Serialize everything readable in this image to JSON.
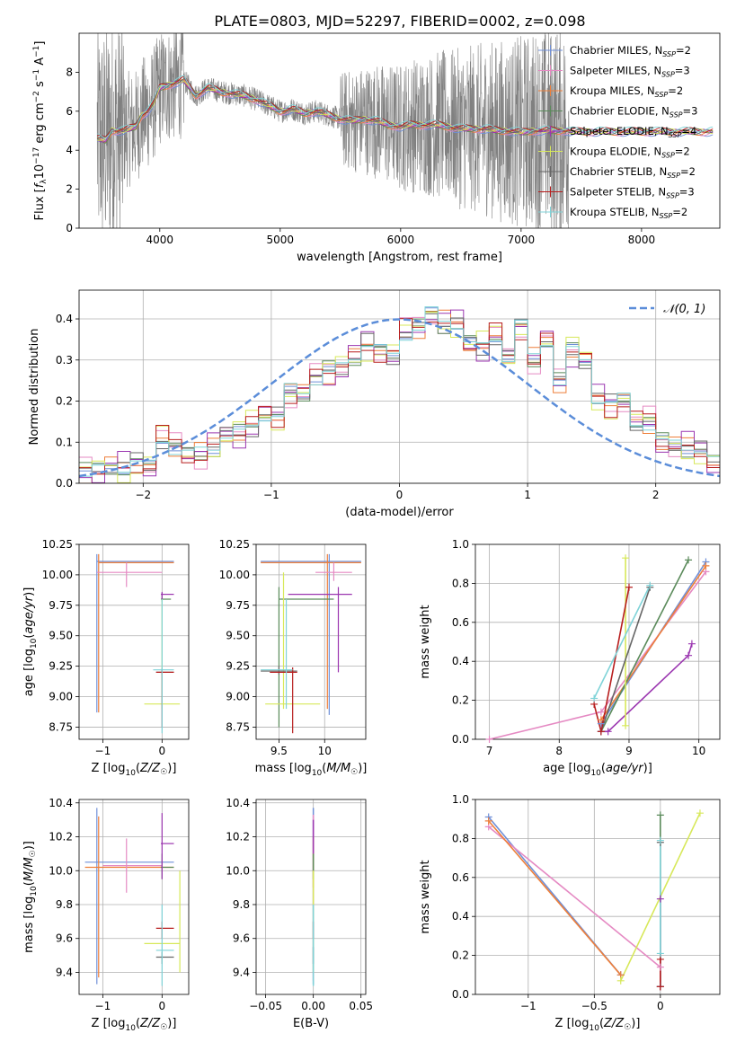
{
  "title": "PLATE=0803, MJD=52297, FIBERID=0002, z=0.098",
  "colors": {
    "Chabrier MILES": "#6f8fd8",
    "Salpeter MILES": "#e58ac3",
    "Kroupa MILES": "#ee7f3a",
    "Chabrier ELODIE": "#5a8a5a",
    "Salpeter ELODIE": "#9b36b0",
    "Kroupa ELODIE": "#d7e85a",
    "Chabrier STELIB": "#666666",
    "Salpeter STELIB": "#b81e1e",
    "Kroupa STELIB": "#7fd3d8",
    "data": "#808080",
    "gaussian": "#5b8dd9"
  },
  "chart_data": [
    {
      "id": "spectrum",
      "type": "line",
      "xlabel": "wavelength [Angstrom, rest frame]",
      "ylabel": "Flux [f_λ 10^-17 erg cm^-2 s^-1 A^-1]",
      "xlim": [
        3330,
        8650
      ],
      "ylim": [
        0,
        10
      ],
      "xticks": [
        4000,
        5000,
        6000,
        7000,
        8000
      ],
      "yticks": [
        0,
        2,
        4,
        6,
        8
      ],
      "legend_position": "top-right",
      "legend": [
        {
          "name": "Chabrier MILES",
          "nssp": "2"
        },
        {
          "name": "Salpeter MILES",
          "nssp": "3"
        },
        {
          "name": "Kroupa MILES",
          "nssp": "2"
        },
        {
          "name": "Chabrier ELODIE",
          "nssp": "3"
        },
        {
          "name": "Salpeter ELODIE",
          "nssp": "4"
        },
        {
          "name": "Kroupa ELODIE",
          "nssp": "2"
        },
        {
          "name": "Chabrier STELIB",
          "nssp": "2"
        },
        {
          "name": "Salpeter STELIB",
          "nssp": "3"
        },
        {
          "name": "Kroupa STELIB",
          "nssp": "2"
        }
      ],
      "data_range": [
        3480,
        7400
      ],
      "model_points": [
        [
          3480,
          4.6
        ],
        [
          3550,
          4.5
        ],
        [
          3600,
          5.0
        ],
        [
          3700,
          5.0
        ],
        [
          3800,
          5.2
        ],
        [
          3850,
          5.8
        ],
        [
          3900,
          6.0
        ],
        [
          3950,
          6.4
        ],
        [
          4000,
          7.2
        ],
        [
          4100,
          7.4
        ],
        [
          4200,
          7.6
        ],
        [
          4300,
          6.8
        ],
        [
          4400,
          7.2
        ],
        [
          4500,
          7.0
        ],
        [
          4600,
          6.9
        ],
        [
          4700,
          6.8
        ],
        [
          4800,
          6.6
        ],
        [
          4900,
          6.3
        ],
        [
          5000,
          6.0
        ],
        [
          5100,
          6.1
        ],
        [
          5200,
          5.9
        ],
        [
          5300,
          6.0
        ],
        [
          5400,
          5.8
        ],
        [
          5500,
          5.6
        ],
        [
          5600,
          5.5
        ],
        [
          5700,
          5.6
        ],
        [
          5800,
          5.5
        ],
        [
          5900,
          5.3
        ],
        [
          6000,
          5.2
        ],
        [
          6100,
          5.3
        ],
        [
          6200,
          5.3
        ],
        [
          6300,
          5.3
        ],
        [
          6400,
          5.2
        ],
        [
          6500,
          5.1
        ],
        [
          6600,
          5.1
        ],
        [
          6700,
          5.1
        ],
        [
          6800,
          5.0
        ],
        [
          6900,
          5.0
        ],
        [
          7000,
          4.9
        ],
        [
          7100,
          5.0
        ],
        [
          7200,
          5.0
        ],
        [
          7300,
          5.0
        ],
        [
          7400,
          5.0
        ]
      ]
    },
    {
      "id": "residuals",
      "type": "line",
      "xlabel": "(data-model)/error",
      "ylabel": "Normed distribution",
      "xlim": [
        -2.5,
        2.5
      ],
      "ylim": [
        0,
        0.47
      ],
      "xticks": [
        -2,
        -1,
        0,
        1,
        2
      ],
      "yticks": [
        0.0,
        0.1,
        0.2,
        0.3,
        0.4
      ],
      "legend": "𝒩(0, 1)",
      "legend_position": "top-right",
      "bin_width": 0.1,
      "bin_start": -2.5,
      "histogram": [
        0.03,
        0.03,
        0.04,
        0.04,
        0.05,
        0.04,
        0.11,
        0.09,
        0.07,
        0.07,
        0.09,
        0.12,
        0.12,
        0.14,
        0.17,
        0.16,
        0.22,
        0.22,
        0.26,
        0.27,
        0.28,
        0.31,
        0.34,
        0.32,
        0.31,
        0.37,
        0.38,
        0.41,
        0.39,
        0.39,
        0.34,
        0.33,
        0.36,
        0.31,
        0.38,
        0.3,
        0.35,
        0.25,
        0.32,
        0.3,
        0.21,
        0.19,
        0.2,
        0.15,
        0.15,
        0.1,
        0.09,
        0.09,
        0.08,
        0.05
      ]
    },
    {
      "id": "age-vs-Z",
      "type": "scatter",
      "xlabel": "Z [log10(Z/Z☉)]",
      "ylabel": "age [log10(age/yr)]",
      "xlim": [
        -1.4,
        0.45
      ],
      "ylim": [
        8.65,
        10.25
      ],
      "xticks": [
        -1,
        0
      ],
      "yticks": [
        8.75,
        9.0,
        9.25,
        9.5,
        9.75,
        10.0,
        10.25
      ]
    },
    {
      "id": "age-vs-mass",
      "type": "scatter",
      "xlabel": "mass [log10(M/M☉)]",
      "xlim": [
        9.25,
        10.45
      ],
      "ylim": [
        8.65,
        10.25
      ],
      "xticks": [
        9.5,
        10.0
      ],
      "yticks": [
        8.75,
        9.0,
        9.25,
        9.5,
        9.75,
        10.0,
        10.25
      ]
    },
    {
      "id": "weight-vs-age",
      "type": "line",
      "xlabel": "age [log10(age/yr)]",
      "ylabel": "mass weight",
      "xlim": [
        6.8,
        10.3
      ],
      "ylim": [
        0,
        1.0
      ],
      "xticks": [
        7,
        8,
        9,
        10
      ],
      "yticks": [
        0.0,
        0.2,
        0.4,
        0.6,
        0.8,
        1.0
      ],
      "series": [
        {
          "name": "Chabrier MILES",
          "x": [
            8.6,
            10.1
          ],
          "y": [
            0.08,
            0.91
          ]
        },
        {
          "name": "Salpeter MILES",
          "x": [
            7.0,
            8.6,
            10.1
          ],
          "y": [
            0.0,
            0.14,
            0.86
          ]
        },
        {
          "name": "Kroupa MILES",
          "x": [
            8.6,
            10.1
          ],
          "y": [
            0.1,
            0.89
          ]
        },
        {
          "name": "Chabrier ELODIE",
          "x": [
            8.6,
            9.85
          ],
          "y": [
            0.04,
            0.92
          ]
        },
        {
          "name": "Salpeter ELODIE",
          "x": [
            8.6,
            8.7,
            9.85,
            9.9
          ],
          "y": [
            0.04,
            0.04,
            0.43,
            0.49
          ]
        },
        {
          "name": "Kroupa ELODIE",
          "x": [
            8.95,
            8.95
          ],
          "y": [
            0.07,
            0.93
          ]
        },
        {
          "name": "Chabrier STELIB",
          "x": [
            8.6,
            9.3
          ],
          "y": [
            0.04,
            0.78
          ]
        },
        {
          "name": "Salpeter STELIB",
          "x": [
            8.5,
            8.6,
            9.0
          ],
          "y": [
            0.18,
            0.04,
            0.78
          ]
        },
        {
          "name": "Kroupa STELIB",
          "x": [
            8.5,
            9.3
          ],
          "y": [
            0.21,
            0.79
          ]
        }
      ]
    },
    {
      "id": "mass-vs-Z",
      "type": "scatter",
      "xlabel": "Z [log10(Z/Z☉)]",
      "ylabel": "mass [log10(M/M☉)]",
      "xlim": [
        -1.4,
        0.45
      ],
      "ylim": [
        9.27,
        10.42
      ],
      "xticks": [
        -1,
        0
      ],
      "yticks": [
        9.4,
        9.6,
        9.8,
        10.0,
        10.2,
        10.4
      ]
    },
    {
      "id": "mass-vs-EBV",
      "type": "scatter",
      "xlabel": "E(B-V)",
      "xlim": [
        -0.06,
        0.055
      ],
      "ylim": [
        9.27,
        10.42
      ],
      "xticks": [
        -0.05,
        0.0,
        0.05
      ],
      "xticklabels": [
        "−0.05",
        "0.00",
        "0.05"
      ],
      "yticks": [
        9.4,
        9.6,
        9.8,
        10.0,
        10.2,
        10.4
      ]
    },
    {
      "id": "weight-vs-Z",
      "type": "line",
      "xlabel": "Z [log10(Z/Z☉)]",
      "ylabel": "mass weight",
      "xlim": [
        -1.4,
        0.45
      ],
      "ylim": [
        0,
        1.0
      ],
      "xticks": [
        -1.0,
        -0.5,
        0.0
      ],
      "yticks": [
        0.0,
        0.2,
        0.4,
        0.6,
        0.8,
        1.0
      ],
      "series": [
        {
          "name": "Chabrier MILES",
          "x": [
            -1.3,
            -0.3
          ],
          "y": [
            0.91,
            0.1
          ]
        },
        {
          "name": "Salpeter MILES",
          "x": [
            -1.3,
            0.0
          ],
          "y": [
            0.86,
            0.14
          ]
        },
        {
          "name": "Kroupa MILES",
          "x": [
            -1.3,
            -0.3
          ],
          "y": [
            0.89,
            0.1
          ]
        },
        {
          "name": "Chabrier ELODIE",
          "x": [
            0.0,
            0.0
          ],
          "y": [
            0.04,
            0.92
          ]
        },
        {
          "name": "Salpeter ELODIE",
          "x": [
            0.0,
            0.0
          ],
          "y": [
            0.04,
            0.49
          ]
        },
        {
          "name": "Kroupa ELODIE",
          "x": [
            -0.3,
            0.3
          ],
          "y": [
            0.07,
            0.93
          ]
        },
        {
          "name": "Chabrier STELIB",
          "x": [
            0.0,
            0.0
          ],
          "y": [
            0.04,
            0.78
          ]
        },
        {
          "name": "Salpeter STELIB",
          "x": [
            0.0,
            0.0
          ],
          "y": [
            0.04,
            0.18
          ]
        },
        {
          "name": "Kroupa STELIB",
          "x": [
            0.0,
            0.0
          ],
          "y": [
            0.21,
            0.79
          ]
        }
      ]
    }
  ]
}
